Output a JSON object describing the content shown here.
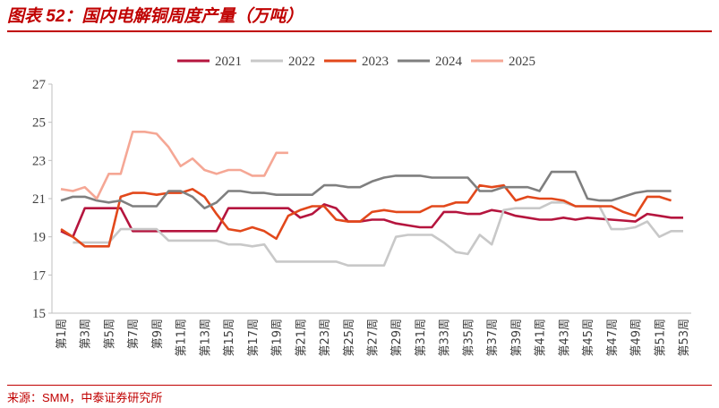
{
  "chart_data": {
    "type": "line",
    "title": "图表 52：国内电解铜周度产量（万吨）",
    "source": "来源：SMM，中泰证券研究所",
    "categories": [
      "第1周",
      null,
      "第3周",
      null,
      "第5周",
      null,
      "第7周",
      null,
      "第9周",
      null,
      "第11周",
      null,
      "第13周",
      null,
      "第15周",
      null,
      "第17周",
      null,
      "第19周",
      null,
      "第21周",
      null,
      "第23周",
      null,
      "第25周",
      null,
      "第27周",
      null,
      "第29周",
      null,
      "第31周",
      null,
      "第33周",
      null,
      "第35周",
      null,
      "第37周",
      null,
      "第39周",
      null,
      "第41周",
      null,
      "第43周",
      null,
      "第45周",
      null,
      "第47周",
      null,
      "第49周",
      null,
      "第51周",
      null,
      "第53周"
    ],
    "ylim": [
      15,
      27
    ],
    "yticks": [
      15,
      17,
      19,
      21,
      23,
      25,
      27
    ],
    "grid": false,
    "legend": "top",
    "series": [
      {
        "name": "2021",
        "color": "#b5153e",
        "values": [
          19.3,
          19.0,
          20.5,
          20.5,
          20.5,
          20.5,
          19.3,
          19.3,
          19.3,
          19.3,
          19.3,
          19.3,
          19.3,
          19.3,
          20.5,
          20.5,
          20.5,
          20.5,
          20.5,
          20.5,
          20.0,
          20.2,
          20.7,
          20.5,
          19.8,
          19.8,
          19.9,
          19.9,
          19.7,
          19.6,
          19.5,
          19.5,
          20.3,
          20.3,
          20.2,
          20.2,
          20.4,
          20.3,
          20.1,
          20.0,
          19.9,
          19.9,
          20.0,
          19.9,
          20.0,
          19.95,
          19.9,
          19.85,
          19.8,
          20.2,
          20.1,
          20.0,
          20.0
        ]
      },
      {
        "name": "2022",
        "color": "#c8c8c8",
        "values": [
          null,
          18.7,
          18.7,
          18.7,
          18.7,
          19.4,
          19.4,
          19.4,
          19.4,
          18.8,
          18.8,
          18.8,
          18.8,
          18.8,
          18.6,
          18.6,
          18.5,
          18.6,
          17.7,
          17.7,
          17.7,
          17.7,
          17.7,
          17.7,
          17.5,
          17.5,
          17.5,
          17.5,
          19.0,
          19.1,
          19.1,
          19.1,
          18.7,
          18.2,
          18.1,
          19.1,
          18.6,
          20.4,
          20.5,
          20.5,
          20.5,
          20.8,
          20.8,
          20.6,
          20.6,
          20.6,
          19.4,
          19.4,
          19.5,
          19.8,
          19.0,
          19.3,
          19.3
        ]
      },
      {
        "name": "2023",
        "color": "#e2481b",
        "values": [
          19.4,
          19.0,
          18.5,
          18.5,
          18.5,
          21.1,
          21.3,
          21.3,
          21.2,
          21.3,
          21.3,
          21.5,
          21.1,
          20.2,
          19.4,
          19.3,
          19.5,
          19.3,
          18.9,
          20.1,
          20.4,
          20.6,
          20.6,
          19.9,
          19.8,
          19.8,
          20.3,
          20.4,
          20.3,
          20.3,
          20.3,
          20.6,
          20.6,
          20.8,
          20.8,
          21.7,
          21.6,
          21.7,
          20.9,
          21.1,
          21.0,
          21.0,
          20.9,
          20.6,
          20.6,
          20.6,
          20.6,
          20.3,
          20.1,
          21.1,
          21.1,
          20.9,
          null
        ]
      },
      {
        "name": "2024",
        "color": "#7f7f7f",
        "values": [
          20.9,
          21.1,
          21.1,
          20.9,
          20.8,
          20.9,
          20.6,
          20.6,
          20.6,
          21.4,
          21.4,
          21.1,
          20.5,
          20.8,
          21.4,
          21.4,
          21.3,
          21.3,
          21.2,
          21.2,
          21.2,
          21.2,
          21.7,
          21.7,
          21.6,
          21.6,
          21.9,
          22.1,
          22.2,
          22.2,
          22.2,
          22.1,
          22.1,
          22.1,
          22.1,
          21.4,
          21.4,
          21.6,
          21.6,
          21.6,
          21.4,
          22.4,
          22.4,
          22.4,
          21.0,
          20.9,
          20.9,
          21.1,
          21.3,
          21.4,
          21.4,
          21.4,
          null
        ]
      },
      {
        "name": "2025",
        "color": "#f5a795",
        "values": [
          21.5,
          21.4,
          21.6,
          21.0,
          22.3,
          22.3,
          24.5,
          24.5,
          24.4,
          23.7,
          22.7,
          23.1,
          22.5,
          22.3,
          22.5,
          22.5,
          22.2,
          22.2,
          23.4,
          23.4,
          null,
          null,
          null,
          null,
          null,
          null,
          null,
          null,
          null,
          null,
          null,
          null,
          null,
          null,
          null,
          null,
          null,
          null,
          null,
          null,
          null,
          null,
          null,
          null,
          null,
          null,
          null,
          null,
          null,
          null,
          null,
          null,
          null
        ]
      }
    ]
  }
}
